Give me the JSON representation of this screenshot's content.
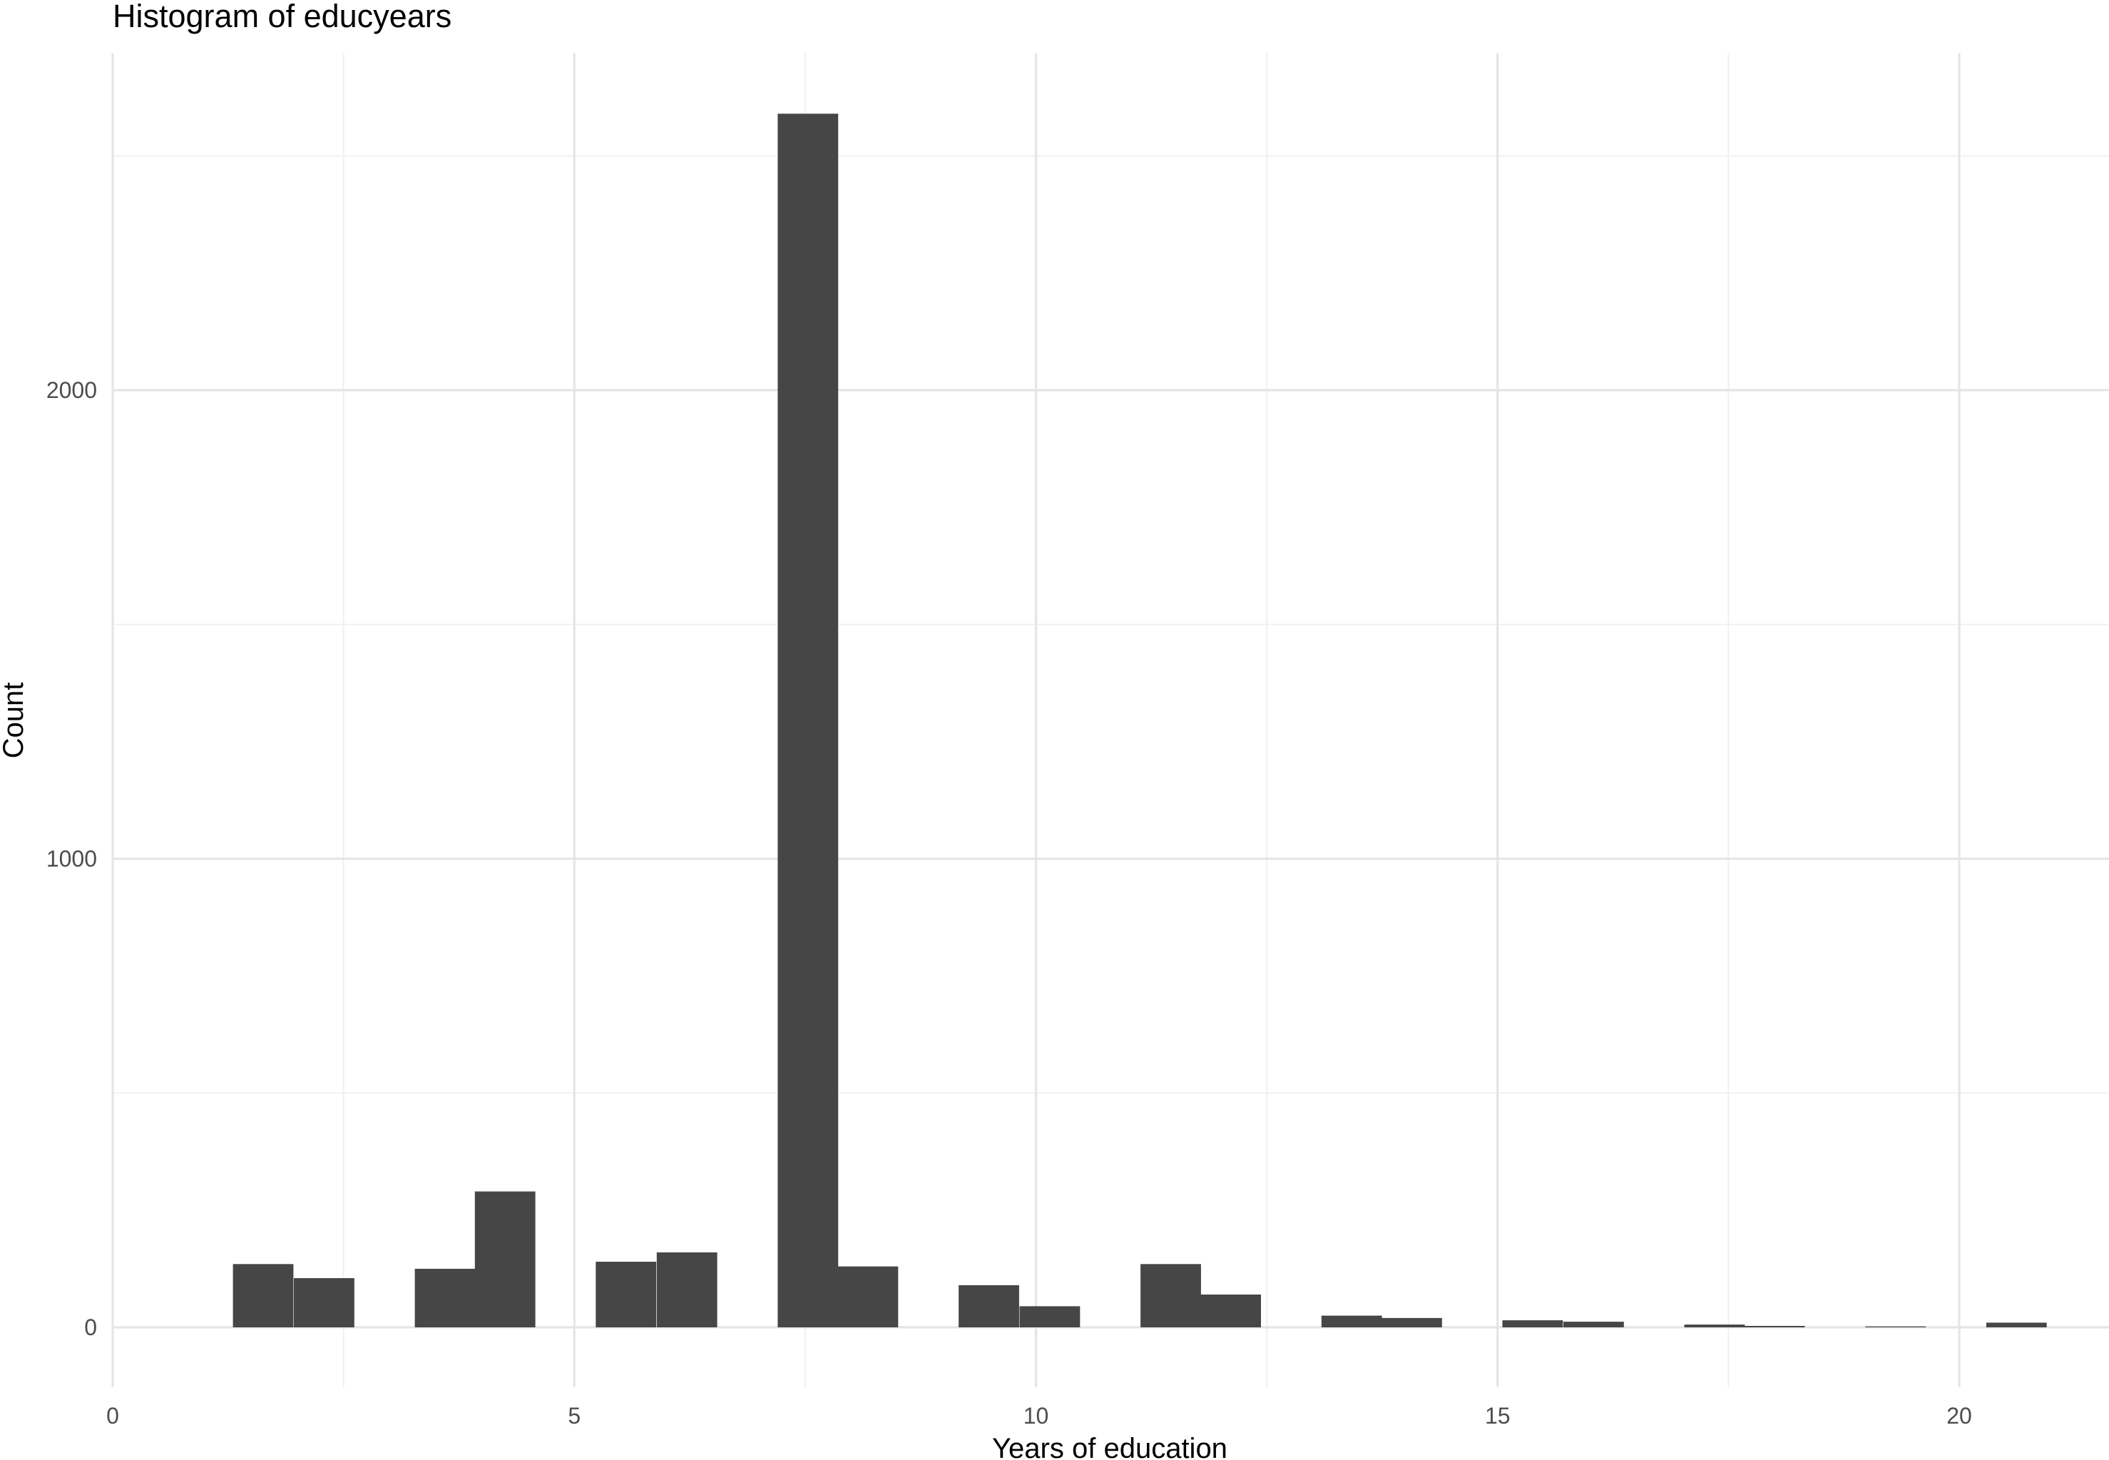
{
  "chart_data": {
    "type": "bar",
    "title": "Histogram of educyears",
    "xlabel": "Years of education",
    "ylabel": "Count",
    "xlim": [
      0,
      21.5
    ],
    "ylim": [
      -125,
      2750
    ],
    "x_ticks": [
      0,
      5,
      10,
      15,
      20
    ],
    "y_ticks": [
      0,
      1000,
      2000
    ],
    "bin_width": 0.655,
    "bins": [
      {
        "x": 1.63,
        "count": 135
      },
      {
        "x": 2.29,
        "count": 105
      },
      {
        "x": 3.6,
        "count": 125
      },
      {
        "x": 4.25,
        "count": 290
      },
      {
        "x": 5.56,
        "count": 140
      },
      {
        "x": 6.22,
        "count": 160
      },
      {
        "x": 7.53,
        "count": 2590
      },
      {
        "x": 8.18,
        "count": 130
      },
      {
        "x": 9.49,
        "count": 90
      },
      {
        "x": 10.15,
        "count": 45
      },
      {
        "x": 11.46,
        "count": 135
      },
      {
        "x": 12.11,
        "count": 70
      },
      {
        "x": 13.42,
        "count": 25
      },
      {
        "x": 14.07,
        "count": 20
      },
      {
        "x": 15.38,
        "count": 15
      },
      {
        "x": 16.04,
        "count": 12
      },
      {
        "x": 17.35,
        "count": 6
      },
      {
        "x": 18.0,
        "count": 3
      },
      {
        "x": 19.31,
        "count": 2
      },
      {
        "x": 20.62,
        "count": 10
      }
    ],
    "grid": true,
    "bar_color": "#464646"
  }
}
